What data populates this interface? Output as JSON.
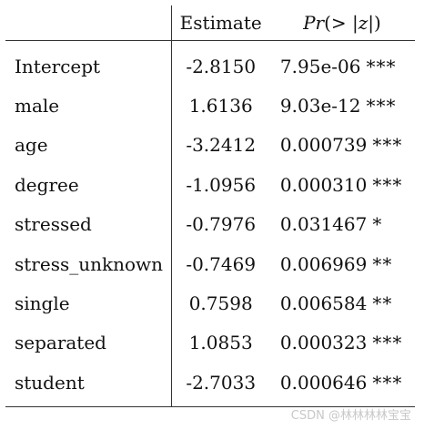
{
  "table": {
    "header": {
      "name": "",
      "estimate": "Estimate",
      "p_prefix": "Pr",
      "p_open": "(> |",
      "p_var": "z",
      "p_close": "|)"
    },
    "rows": [
      {
        "name": "Intercept",
        "estimate": "-2.8150",
        "p": "7.95e-06",
        "sig": "***"
      },
      {
        "name": "male",
        "estimate": "1.6136",
        "p": "9.03e-12",
        "sig": "***"
      },
      {
        "name": "age",
        "estimate": "-3.2412",
        "p": "0.000739",
        "sig": "***"
      },
      {
        "name": "degree",
        "estimate": "-1.0956",
        "p": "0.000310",
        "sig": "***"
      },
      {
        "name": "stressed",
        "estimate": "-0.7976",
        "p": "0.031467",
        "sig": "*"
      },
      {
        "name": "stress_unknown",
        "estimate": "-0.7469",
        "p": "0.006969",
        "sig": "**"
      },
      {
        "name": "single",
        "estimate": "0.7598",
        "p": "0.006584",
        "sig": "**"
      },
      {
        "name": "separated",
        "estimate": "1.0853",
        "p": "0.000323",
        "sig": "***"
      },
      {
        "name": "student",
        "estimate": "-2.7033",
        "p": "0.000646",
        "sig": "***"
      }
    ]
  },
  "watermark": "CSDN @林林林林宝宝"
}
